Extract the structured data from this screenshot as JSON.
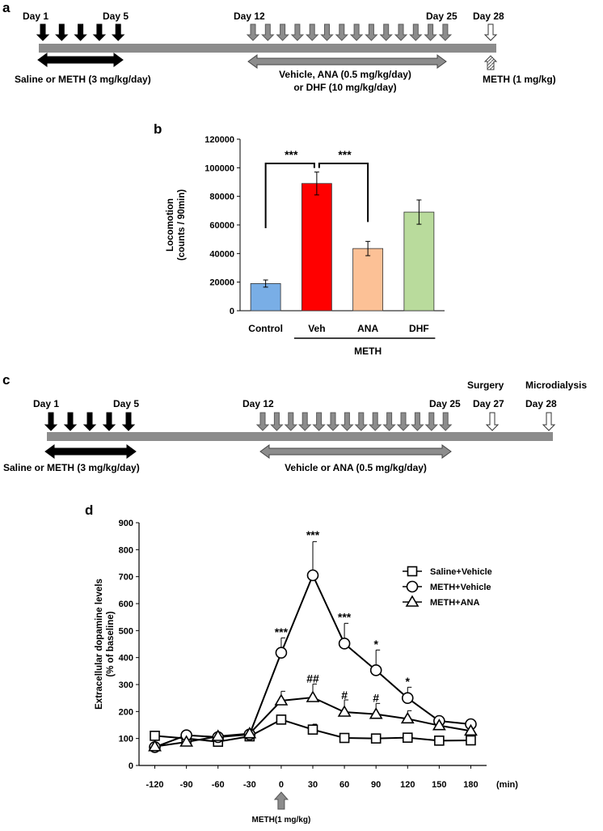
{
  "panels": {
    "a": "a",
    "b": "b",
    "c": "c",
    "d": "d"
  },
  "timeline_a": {
    "day_labels": [
      "Day 1",
      "Day 5",
      "Day 12",
      "Day 25",
      "Day 28"
    ],
    "left_range_label": "Saline or METH (3 mg/kg/day)",
    "mid_range_label_1": "Vehicle, ANA (0.5 mg/kg/day)",
    "mid_range_label_2": "or DHF (10 mg/kg/day)",
    "challenge_label": "METH (1 mg/kg)",
    "colors": {
      "bar": "#8c8c8c",
      "black_arrow": "#000000",
      "gray_arrow": "#8c8c8c",
      "open_arrow": "#ffffff"
    }
  },
  "timeline_c": {
    "day_labels": [
      "Day 1",
      "Day 5",
      "Day 12",
      "Day 25",
      "Day 27",
      "Day 28"
    ],
    "event_labels": [
      "Surgery",
      "Microdialysis"
    ],
    "left_range_label": "Saline or METH (3 mg/kg/day)",
    "mid_range_label": "Vehicle or ANA (0.5 mg/kg/day)"
  },
  "chart_data": [
    {
      "type": "bar",
      "panel": "b",
      "ylabel_line1": "Locomotion",
      "ylabel_line2": "(counts / 90min)",
      "ylim": [
        0,
        120000
      ],
      "yticks": [
        "0",
        "20000",
        "40000",
        "60000",
        "80000",
        "100000",
        "120000"
      ],
      "ytick_values": [
        0,
        20000,
        40000,
        60000,
        80000,
        100000,
        120000
      ],
      "categories": [
        "Control",
        "Veh",
        "ANA",
        "DHF"
      ],
      "values": [
        19000,
        89000,
        43500,
        69000
      ],
      "errors": [
        2500,
        8000,
        5000,
        8500
      ],
      "colors": [
        "#79aee6",
        "#ff0000",
        "#fcc196",
        "#b9db9c"
      ],
      "group_label": "METH",
      "significance": [
        {
          "between": [
            "Control",
            "Veh"
          ],
          "label": "***"
        },
        {
          "between": [
            "Veh",
            "ANA"
          ],
          "label": "***"
        }
      ]
    },
    {
      "type": "line",
      "panel": "d",
      "ylabel_line1": "Extracellular dopamine levels",
      "ylabel_line2": "(% of baseline)",
      "xlabel_unit": "(min)",
      "ylim": [
        0,
        900
      ],
      "yticks": [
        "0",
        "100",
        "200",
        "300",
        "400",
        "500",
        "600",
        "700",
        "800",
        "900"
      ],
      "ytick_values": [
        0,
        100,
        200,
        300,
        400,
        500,
        600,
        700,
        800,
        900
      ],
      "x": [
        -120,
        -90,
        -60,
        -30,
        0,
        30,
        60,
        90,
        120,
        150,
        180
      ],
      "xticks": [
        "-120",
        "-90",
        "-60",
        "-30",
        "0",
        "30",
        "60",
        "90",
        "120",
        "150",
        "180"
      ],
      "series": [
        {
          "name": "Saline+Vehicle",
          "marker": "square",
          "values": [
            110,
            100,
            88,
            108,
            170,
            133,
            102,
            100,
            103,
            92,
            93
          ],
          "errors": [
            0,
            0,
            0,
            0,
            0,
            20,
            0,
            0,
            0,
            0,
            0
          ]
        },
        {
          "name": "METH+Vehicle",
          "marker": "circle",
          "values": [
            68,
            112,
            105,
            115,
            418,
            705,
            452,
            353,
            250,
            165,
            153
          ],
          "errors": [
            0,
            0,
            0,
            0,
            55,
            125,
            75,
            75,
            40,
            0,
            0
          ]
        },
        {
          "name": "METH+ANA",
          "marker": "triangle",
          "values": [
            70,
            87,
            108,
            118,
            240,
            252,
            198,
            190,
            173,
            148,
            128
          ],
          "errors": [
            0,
            0,
            0,
            0,
            35,
            50,
            45,
            40,
            30,
            0,
            0
          ]
        }
      ],
      "annotations": [
        {
          "x": 0,
          "y": 480,
          "label": "***"
        },
        {
          "x": 30,
          "y": 840,
          "label": "***"
        },
        {
          "x": 60,
          "y": 535,
          "label": "***"
        },
        {
          "x": 90,
          "y": 435,
          "label": "*"
        },
        {
          "x": 120,
          "y": 297,
          "label": "*"
        },
        {
          "x": 30,
          "y": 307,
          "label": "##"
        },
        {
          "x": 60,
          "y": 246,
          "label": "#"
        },
        {
          "x": 90,
          "y": 235,
          "label": "#"
        }
      ],
      "injection_label": "METH(1 mg/kg)"
    }
  ]
}
